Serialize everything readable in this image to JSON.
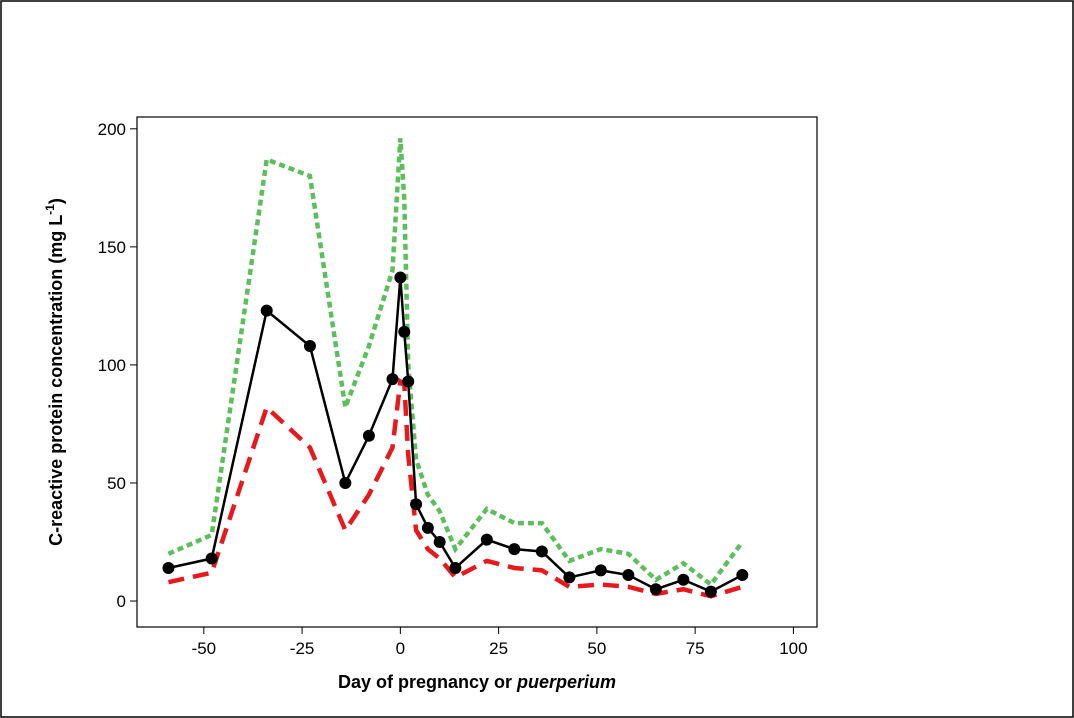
{
  "chart_data": {
    "type": "line",
    "x_label": "Day of pregnancy or ",
    "x_label_italic": "puerperium",
    "y_label": "C-reactive protein concentration (mg L",
    "y_label_sup": "-1",
    "y_label_end": ")",
    "x": [
      -59,
      -48,
      -34,
      -23,
      -14,
      -8,
      -2,
      0,
      1,
      2,
      4,
      7,
      10,
      14,
      22,
      29,
      36,
      43,
      51,
      58,
      65,
      72,
      79,
      87
    ],
    "series": [
      {
        "color": "#5cbf5c",
        "style": "dotted",
        "markers": false,
        "values": [
          20,
          28,
          187,
          180,
          82,
          108,
          140,
          196,
          170,
          100,
          60,
          45,
          38,
          22,
          39,
          33,
          33,
          17,
          22,
          20,
          9,
          16,
          7,
          25
        ]
      },
      {
        "color": "#e8191c",
        "style": "dashed",
        "markers": false,
        "values": [
          8,
          12,
          82,
          65,
          30,
          45,
          65,
          93,
          92,
          62,
          30,
          22,
          18,
          10,
          17,
          14,
          13,
          6,
          7,
          6,
          3,
          5,
          2,
          6
        ]
      },
      {
        "color": "#000000",
        "style": "solid",
        "markers": true,
        "values": [
          14,
          18,
          123,
          108,
          50,
          70,
          94,
          137,
          114,
          93,
          41,
          31,
          25,
          14,
          26,
          22,
          21,
          10,
          13,
          11,
          5,
          9,
          4,
          11
        ]
      }
    ],
    "xlim": [
      -67,
      106
    ],
    "xticks": [
      -50,
      -25,
      0,
      25,
      50,
      75,
      100
    ],
    "ylim": [
      -11,
      205
    ],
    "yticks": [
      0,
      50,
      100,
      150,
      200
    ],
    "grid": false
  }
}
